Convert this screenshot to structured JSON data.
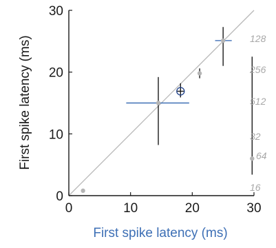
{
  "chart_data": {
    "type": "scatter",
    "xlabel": "First spike latency (ms)",
    "ylabel": "First spike latency (ms)",
    "xlim": [
      0,
      30
    ],
    "ylim": [
      0,
      30
    ],
    "xticks": [
      0,
      10,
      20,
      30
    ],
    "yticks": [
      0,
      10,
      20,
      30
    ],
    "grid": false,
    "reference_line": {
      "from": [
        0,
        0
      ],
      "to": [
        30,
        30
      ],
      "color": "#b8b8b8"
    },
    "points": [
      {
        "x": 2.3,
        "y": 0.8,
        "x_err": [
          2.3,
          2.3
        ],
        "y_err": [
          0.6,
          1.0
        ],
        "style": "grey"
      },
      {
        "x": 14.5,
        "y": 15.0,
        "x_err": [
          9.3,
          19.5
        ],
        "y_err": [
          8.2,
          19.2
        ],
        "style": "blue-h-black-v"
      },
      {
        "x": 18.1,
        "y": 16.9,
        "x_err": [
          17.5,
          18.7
        ],
        "y_err": [
          15.9,
          18.2
        ],
        "style": "open-circle"
      },
      {
        "x": 21.2,
        "y": 19.8,
        "x_err": [
          21.2,
          21.2
        ],
        "y_err": [
          19.0,
          20.6
        ],
        "style": "grey"
      },
      {
        "x": 25.0,
        "y": 25.1,
        "x_err": [
          23.7,
          26.4
        ],
        "y_err": [
          21.0,
          27.3
        ],
        "style": "blue-h-black-v"
      },
      {
        "x": 29.7,
        "y": 6.0,
        "x_err": [
          29.7,
          29.7
        ],
        "y_err": [
          3.4,
          22.5
        ],
        "style": "grey-black-v"
      }
    ],
    "annotations": [
      "128",
      "256",
      "512",
      "32",
      "64",
      "16"
    ],
    "colors": {
      "axis": "#1a1a1a",
      "xlabel": "#3d6fb5",
      "ylabel": "#1a1a1a",
      "marker": "#b5b5b5",
      "blue_bar": "#3d6fb5",
      "black_bar": "#1a1a1a",
      "open_marker": "#1d3f8a",
      "annotation": "#a8a8a8"
    }
  }
}
